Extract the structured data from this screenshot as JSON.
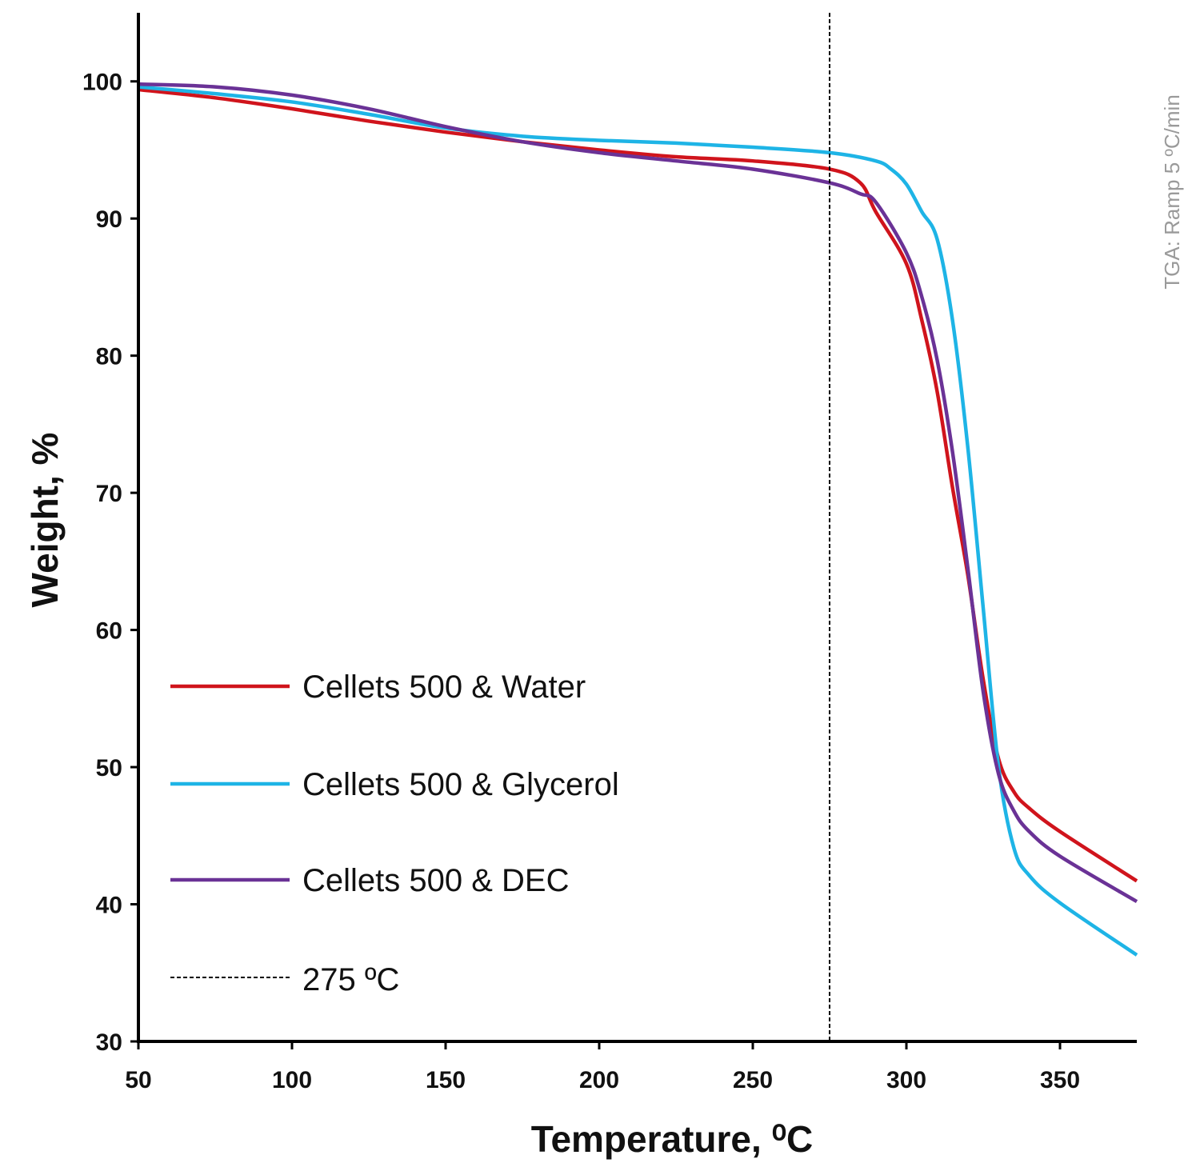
{
  "chart_data": {
    "type": "line",
    "xlabel": "Temperature, ⁰C",
    "ylabel": "Weight, %",
    "xlim": [
      50,
      375
    ],
    "ylim": [
      30,
      105
    ],
    "xticks": [
      50,
      100,
      150,
      200,
      250,
      300,
      350
    ],
    "yticks": [
      30,
      40,
      50,
      60,
      70,
      80,
      90,
      100
    ],
    "grid": false,
    "legend_position": "bottom-left",
    "annotation": "TGA: Ramp 5 ºC/min",
    "reference_line": {
      "x": 275,
      "label": "275 ºC",
      "style": "dashed",
      "color": "#000000"
    },
    "series": [
      {
        "name": "Cellets 500 & Water",
        "color": "#d0141c",
        "x": [
          50,
          75,
          100,
          125,
          150,
          175,
          200,
          225,
          250,
          275,
          285,
          290,
          300,
          305,
          310,
          315,
          320,
          325,
          330,
          335,
          340,
          350,
          375
        ],
        "y": [
          99.4,
          98.8,
          98.0,
          97.1,
          96.3,
          95.6,
          95.0,
          94.5,
          94.2,
          93.6,
          92.6,
          90.5,
          86.7,
          82.6,
          77.4,
          70.4,
          64.0,
          56.4,
          50.6,
          48.2,
          47.0,
          45.3,
          41.7
        ]
      },
      {
        "name": "Cellets 500 & Glycerol",
        "color": "#1eb4e6",
        "x": [
          50,
          75,
          100,
          125,
          150,
          175,
          200,
          225,
          250,
          275,
          290,
          295,
          300,
          305,
          310,
          315,
          320,
          325,
          330,
          335,
          340,
          350,
          375
        ],
        "y": [
          99.6,
          99.1,
          98.5,
          97.6,
          96.6,
          96.0,
          95.7,
          95.5,
          95.2,
          94.8,
          94.2,
          93.6,
          92.5,
          90.5,
          88.5,
          82.6,
          73.3,
          61.6,
          50.0,
          44.1,
          42.1,
          40.1,
          36.3
        ]
      },
      {
        "name": "Cellets 500 & DEC",
        "color": "#6a3296",
        "x": [
          50,
          75,
          100,
          125,
          150,
          175,
          200,
          225,
          250,
          275,
          285,
          290,
          300,
          305,
          310,
          315,
          320,
          325,
          330,
          335,
          340,
          350,
          375
        ],
        "y": [
          99.8,
          99.6,
          99.0,
          98.0,
          96.7,
          95.6,
          94.8,
          94.2,
          93.6,
          92.6,
          91.8,
          91.2,
          87.5,
          84.3,
          79.7,
          73.0,
          64.5,
          55.5,
          49.5,
          46.8,
          45.3,
          43.5,
          40.2
        ]
      }
    ]
  }
}
